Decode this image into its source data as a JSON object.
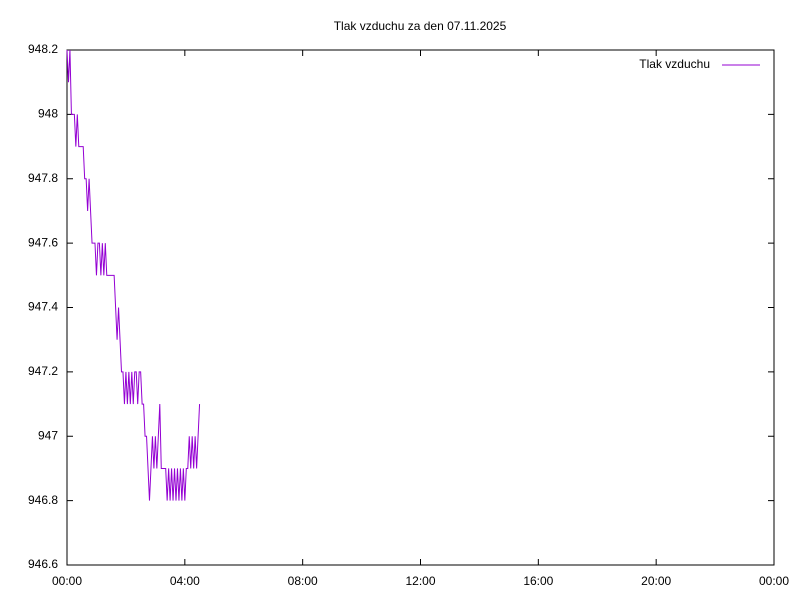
{
  "chart_data": {
    "type": "line",
    "title": "Tlak vzduchu za den 07.11.2025",
    "x": [
      0,
      0.05,
      0.1,
      0.15,
      0.2,
      0.25,
      0.3,
      0.35,
      0.4,
      0.45,
      0.5,
      0.55,
      0.6,
      0.65,
      0.7,
      0.75,
      0.8,
      0.85,
      0.9,
      0.95,
      1,
      1.05,
      1.1,
      1.15,
      1.2,
      1.25,
      1.3,
      1.35,
      1.4,
      1.45,
      1.5,
      1.55,
      1.6,
      1.65,
      1.7,
      1.75,
      1.8,
      1.85,
      1.9,
      1.95,
      2,
      2.05,
      2.1,
      2.15,
      2.2,
      2.25,
      2.3,
      2.35,
      2.4,
      2.45,
      2.5,
      2.55,
      2.6,
      2.65,
      2.7,
      2.75,
      2.8,
      2.85,
      2.9,
      2.95,
      3,
      3.05,
      3.1,
      3.15,
      3.2,
      3.25,
      3.3,
      3.35,
      3.4,
      3.45,
      3.5,
      3.55,
      3.6,
      3.65,
      3.7,
      3.75,
      3.8,
      3.85,
      3.9,
      3.95,
      4,
      4.05,
      4.1,
      4.15,
      4.2,
      4.25,
      4.3,
      4.35,
      4.4,
      4.45,
      4.5
    ],
    "series": [
      {
        "name": "Tlak vzduchu",
        "color": "#9400d3",
        "values": [
          948.2,
          948.1,
          948.2,
          948.0,
          948.0,
          948.0,
          947.9,
          948.0,
          947.9,
          947.9,
          947.9,
          947.9,
          947.8,
          947.8,
          947.7,
          947.8,
          947.7,
          947.6,
          947.6,
          947.6,
          947.5,
          947.6,
          947.6,
          947.5,
          947.6,
          947.5,
          947.6,
          947.5,
          947.5,
          947.5,
          947.5,
          947.5,
          947.5,
          947.4,
          947.3,
          947.4,
          947.3,
          947.2,
          947.2,
          947.1,
          947.2,
          947.1,
          947.2,
          947.1,
          947.2,
          947.1,
          947.2,
          947.2,
          947.1,
          947.2,
          947.2,
          947.1,
          947.1,
          947.0,
          947.0,
          946.9,
          946.8,
          946.9,
          947.0,
          946.9,
          947.0,
          946.9,
          947.0,
          947.1,
          946.9,
          946.9,
          946.9,
          946.9,
          946.8,
          946.9,
          946.8,
          946.9,
          946.8,
          946.9,
          946.8,
          946.9,
          946.8,
          946.9,
          946.8,
          946.9,
          946.8,
          946.9,
          946.9,
          947.0,
          946.9,
          947.0,
          946.9,
          947.0,
          946.9,
          947.0,
          947.1
        ]
      }
    ],
    "xlim": [
      0,
      24
    ],
    "xticks": [
      {
        "value": 0,
        "label": "00:00"
      },
      {
        "value": 4,
        "label": "04:00"
      },
      {
        "value": 8,
        "label": "08:00"
      },
      {
        "value": 12,
        "label": "12:00"
      },
      {
        "value": 16,
        "label": "16:00"
      },
      {
        "value": 20,
        "label": "20:00"
      },
      {
        "value": 24,
        "label": "00:00"
      }
    ],
    "ylim": [
      946.6,
      948.2
    ],
    "yticks": [
      946.6,
      946.8,
      947,
      947.2,
      947.4,
      947.6,
      947.8,
      948,
      948.2
    ],
    "legend": "top-right"
  }
}
